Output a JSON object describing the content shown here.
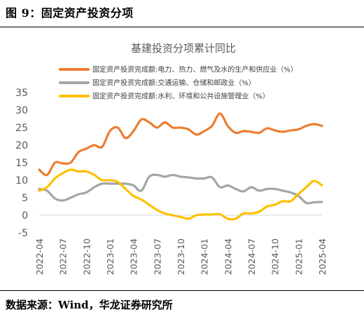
{
  "header": {
    "figure_label": "图 9：固定资产投资分项"
  },
  "footer": {
    "source_label": "数据来源：Wind，华龙证券研究所"
  },
  "chart_data": {
    "type": "line",
    "title": "基建投资分项累计同比",
    "xlabel": "",
    "ylabel": "",
    "ylim": [
      -5,
      35
    ],
    "yticks": [
      -5,
      0,
      5,
      10,
      15,
      20,
      25,
      30,
      35
    ],
    "grid": false,
    "legend_position": "top",
    "x": [
      "2022-04",
      "2022-05",
      "2022-06",
      "2022-07",
      "2022-08",
      "2022-09",
      "2022-10",
      "2022-11",
      "2022-12",
      "2023-01",
      "2023-02",
      "2023-03",
      "2023-04",
      "2023-05",
      "2023-06",
      "2023-07",
      "2023-08",
      "2023-09",
      "2023-10",
      "2023-11",
      "2023-12",
      "2024-01",
      "2024-02",
      "2024-03",
      "2024-04",
      "2024-05",
      "2024-06",
      "2024-07",
      "2024-08",
      "2024-09",
      "2024-10",
      "2024-11",
      "2024-12",
      "2025-01",
      "2025-02",
      "2025-03",
      "2025-04"
    ],
    "xtick_labels": [
      "2022-04",
      "2022-07",
      "2022-10",
      "2023-01",
      "2023-04",
      "2023-07",
      "2023-10",
      "2024-01",
      "2024-04",
      "2024-07",
      "2024-10",
      "2025-01",
      "2025-04"
    ],
    "series": [
      {
        "name": "固定资产投资完成额:电力、热力、燃气及水的生产和供应业（%）",
        "color": "#ED7D31",
        "values": [
          13.0,
          11.5,
          15.0,
          14.8,
          15.0,
          18.0,
          19.0,
          20.0,
          19.5,
          24.0,
          25.0,
          22.0,
          24.0,
          27.3,
          26.5,
          25.0,
          26.5,
          25.0,
          25.0,
          24.5,
          23.0,
          24.0,
          25.5,
          29.0,
          25.5,
          23.5,
          24.0,
          23.8,
          23.5,
          24.8,
          24.2,
          23.8,
          24.2,
          24.5,
          25.5,
          26.0,
          25.5
        ]
      },
      {
        "name": "固定资产投资完成额:交通运输、仓储和邮政业（%）",
        "color": "#A5A5A5",
        "values": [
          7.5,
          7.0,
          4.8,
          4.2,
          5.0,
          6.0,
          6.5,
          8.0,
          9.0,
          9.0,
          9.0,
          9.0,
          8.5,
          7.0,
          11.0,
          11.5,
          11.0,
          11.5,
          11.0,
          10.8,
          10.5,
          10.5,
          10.8,
          8.0,
          8.5,
          7.5,
          6.8,
          8.0,
          7.0,
          7.5,
          7.5,
          7.0,
          6.5,
          5.5,
          3.5,
          3.7,
          3.8
        ]
      },
      {
        "name": "固定资产投资完成额:水利、环境和公共设施管理业（%）",
        "color": "#FFC000",
        "values": [
          7.0,
          8.0,
          10.5,
          12.0,
          13.0,
          12.5,
          12.5,
          11.5,
          10.0,
          10.0,
          9.5,
          7.5,
          5.5,
          4.5,
          3.0,
          1.5,
          0.5,
          0.0,
          -0.5,
          -1.0,
          0.0,
          0.2,
          0.2,
          0.3,
          -1.0,
          -1.0,
          0.5,
          0.5,
          1.0,
          2.5,
          3.0,
          4.0,
          4.0,
          6.0,
          8.0,
          9.8,
          8.5
        ]
      }
    ]
  }
}
